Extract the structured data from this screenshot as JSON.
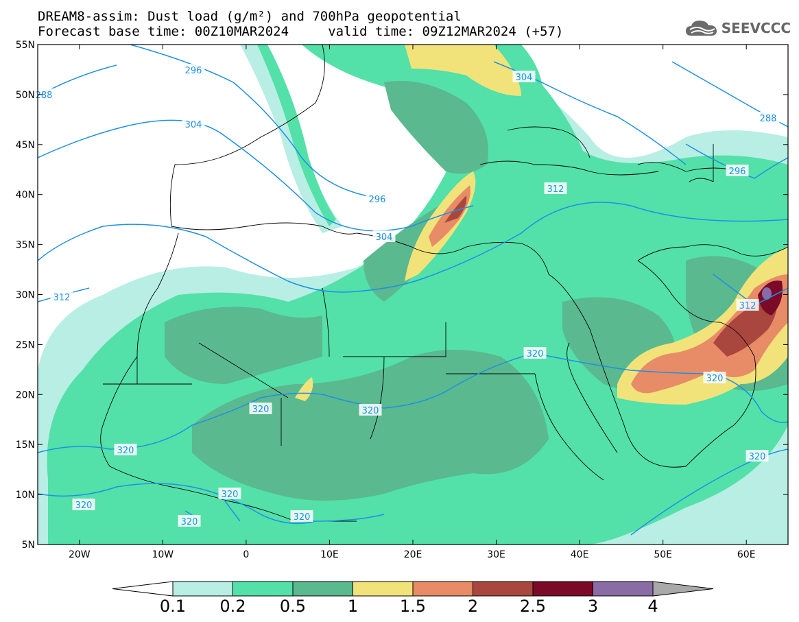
{
  "title": {
    "line1": "DREAM8-assim: Dust load (g/m²) and 700hPa geopotential",
    "line2": "Forecast base time: 00Z10MAR2024     valid time: 09Z12MAR2024 (+57)"
  },
  "brand": {
    "name": "SEEVCCC",
    "icon": "cloud-icon"
  },
  "map": {
    "lon_range": [
      -25,
      65
    ],
    "lat_range": [
      5,
      55
    ],
    "lon_ticks": [
      "20W",
      "10W",
      "0",
      "10E",
      "20E",
      "30E",
      "40E",
      "50E",
      "60E"
    ],
    "lat_ticks": [
      "55N",
      "50N",
      "45N",
      "40N",
      "35N",
      "30N",
      "25N",
      "20N",
      "15N",
      "10N",
      "5N"
    ],
    "contour_labels": [
      "296",
      "288",
      "304",
      "304",
      "296",
      "304",
      "312",
      "312",
      "288",
      "296",
      "312",
      "320",
      "320",
      "320",
      "320",
      "320",
      "320",
      "320",
      "320",
      "320",
      "320"
    ]
  },
  "colorbar": {
    "levels": [
      "0.1",
      "0.2",
      "0.5",
      "1",
      "1.5",
      "2",
      "2.5",
      "3",
      "4"
    ],
    "colors": [
      "#ffffff",
      "#b8eee4",
      "#53e0a9",
      "#5ab98e",
      "#f1e37a",
      "#e78c66",
      "#a9473e",
      "#7b0a29",
      "#8a6ba5",
      "#a9a9a9"
    ]
  }
}
